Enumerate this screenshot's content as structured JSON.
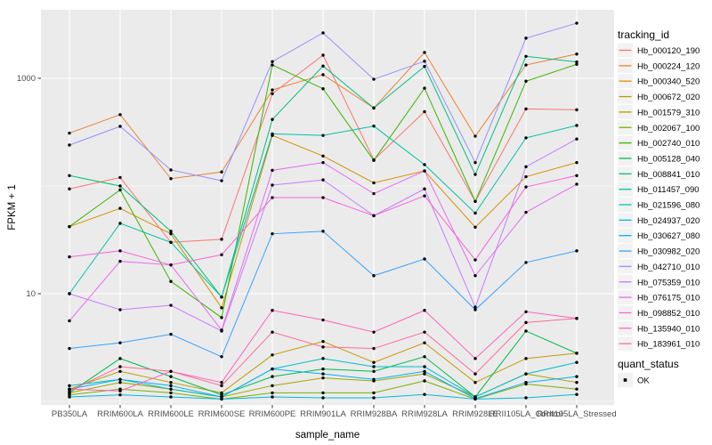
{
  "figure": {
    "background": "#FFFFFF",
    "panel_background": "#EBEBEB",
    "gridline_color": "#FFFFFF",
    "tick_color": "#333333",
    "tick_label_color": "#4D4D4D",
    "point_color": "#000000"
  },
  "chart_data": {
    "type": "line",
    "title": "",
    "xlabel": "sample_name",
    "ylabel": "FPKM + 1",
    "y_scale": "log10",
    "y_axis_tick_labels": [
      "10",
      "1000"
    ],
    "y_tick_values": [
      10,
      1000
    ],
    "y_minor_gridline_values": [
      1,
      100
    ],
    "ylim": [
      1,
      4300
    ],
    "grid": true,
    "legend_position": "right",
    "tracking_legend_title": "tracking_id",
    "quant_legend": {
      "title": "quant_status",
      "items": [
        {
          "label": "OK",
          "marker": "black-point"
        }
      ]
    },
    "categories": [
      "PB350LA",
      "RRIM600LA",
      "RRIM600LE",
      "RRIM600SE",
      "RRIM600PE",
      "RRIM901LA",
      "RRIM928BA",
      "RRIM928LA",
      "RRIM928LE",
      "RRII105LA_Control",
      "RRII105LA_Stressed"
    ],
    "series": [
      {
        "name": "Hb_000120_190",
        "color": "#F8766D",
        "values": [
          94,
          120,
          30,
          32,
          720,
          1640,
          175,
          490,
          72,
          520,
          510
        ]
      },
      {
        "name": "Hb_000224_120",
        "color": "#EA8331",
        "values": [
          310,
          460,
          117,
          135,
          780,
          1080,
          530,
          1740,
          290,
          1330,
          1680
        ]
      },
      {
        "name": "Hb_000340_520",
        "color": "#D89000",
        "values": [
          42,
          62,
          36,
          7.4,
          295,
          190,
          107,
          138,
          41.5,
          122,
          165
        ]
      },
      {
        "name": "Hb_000672_020",
        "color": "#C09B00",
        "values": [
          1.3,
          1.9,
          1.5,
          1.2,
          2.7,
          3.6,
          2.3,
          3.5,
          1.5,
          2.5,
          2.8
        ]
      },
      {
        "name": "Hb_001579_310",
        "color": "#A3A500",
        "values": [
          1.2,
          1.5,
          1.3,
          1.1,
          1.4,
          1.65,
          1.55,
          1.8,
          1.1,
          1.8,
          1.5
        ]
      },
      {
        "name": "Hb_002067_100",
        "color": "#7CAE00",
        "values": [
          1.15,
          1.3,
          1.2,
          1.05,
          1.2,
          1.2,
          1.2,
          1.55,
          1.05,
          1.45,
          1.3
        ]
      },
      {
        "name": "Hb_002740_010",
        "color": "#39B600",
        "values": [
          42,
          92,
          13,
          6,
          1330,
          800,
          173,
          810,
          72,
          940,
          1350
        ]
      },
      {
        "name": "Hb_005128_040",
        "color": "#00BB4E",
        "values": [
          1.2,
          2.5,
          1.7,
          1.15,
          1.7,
          2,
          1.9,
          2.6,
          1.1,
          4.5,
          2.8
        ]
      },
      {
        "name": "Hb_008841_010",
        "color": "#00BF7D",
        "values": [
          125,
          100,
          38,
          9.3,
          415,
          1300,
          530,
          1290,
          128,
          1600,
          1420
        ]
      },
      {
        "name": "Hb_011457_090",
        "color": "#00C1A3",
        "values": [
          10,
          45,
          30,
          9.3,
          305,
          295,
          360,
          158,
          56,
          280,
          365
        ]
      },
      {
        "name": "Hb_021596_080",
        "color": "#00BFC4",
        "values": [
          1.4,
          1.6,
          1.3,
          1.1,
          2,
          2.5,
          2.1,
          2.1,
          1.1,
          1.8,
          2.3
        ]
      },
      {
        "name": "Hb_024937_020",
        "color": "#00BAE0",
        "values": [
          1.1,
          1.15,
          1.1,
          1.05,
          1.1,
          1.08,
          1.08,
          1.16,
          1.05,
          1.08,
          1.16
        ]
      },
      {
        "name": "Hb_030627_080",
        "color": "#00B0F6",
        "values": [
          1.3,
          1.6,
          1.4,
          1.1,
          2,
          1.8,
          1.6,
          1.9,
          1.06,
          1.5,
          1.7
        ]
      },
      {
        "name": "Hb_030982_020",
        "color": "#35A2FF",
        "values": [
          3.1,
          3.5,
          4.2,
          2.6,
          36,
          38,
          14.7,
          21,
          7.1,
          19.5,
          25
        ]
      },
      {
        "name": "Hb_042710_010",
        "color": "#9590FF",
        "values": [
          240,
          358,
          141,
          112,
          1430,
          2640,
          980,
          1440,
          165,
          2360,
          3250
        ]
      },
      {
        "name": "Hb_075359_010",
        "color": "#C77CFF",
        "values": [
          10,
          7.1,
          7.8,
          4.5,
          102,
          114,
          53,
          94,
          7.5,
          151,
          273
        ]
      },
      {
        "name": "Hb_076175_010",
        "color": "#E76BF3",
        "values": [
          5.6,
          20,
          18.5,
          4.6,
          140,
          165,
          85,
          138,
          14.7,
          57,
          104
        ]
      },
      {
        "name": "Hb_098852_010",
        "color": "#FA62DB",
        "values": [
          22,
          25,
          18.5,
          23,
          78,
          78,
          53,
          81,
          20.6,
          98,
          125
        ]
      },
      {
        "name": "Hb_135940_010",
        "color": "#FF62BC",
        "values": [
          1.3,
          1.25,
          1.9,
          1.5,
          7,
          5.7,
          4.4,
          7,
          2.5,
          6.8,
          5.9
        ]
      },
      {
        "name": "Hb_183961_010",
        "color": "#FF6A98",
        "values": [
          1.25,
          2.1,
          1.9,
          1.4,
          4.4,
          3.2,
          3.1,
          4.4,
          1.8,
          5.4,
          5.9
        ]
      }
    ]
  }
}
